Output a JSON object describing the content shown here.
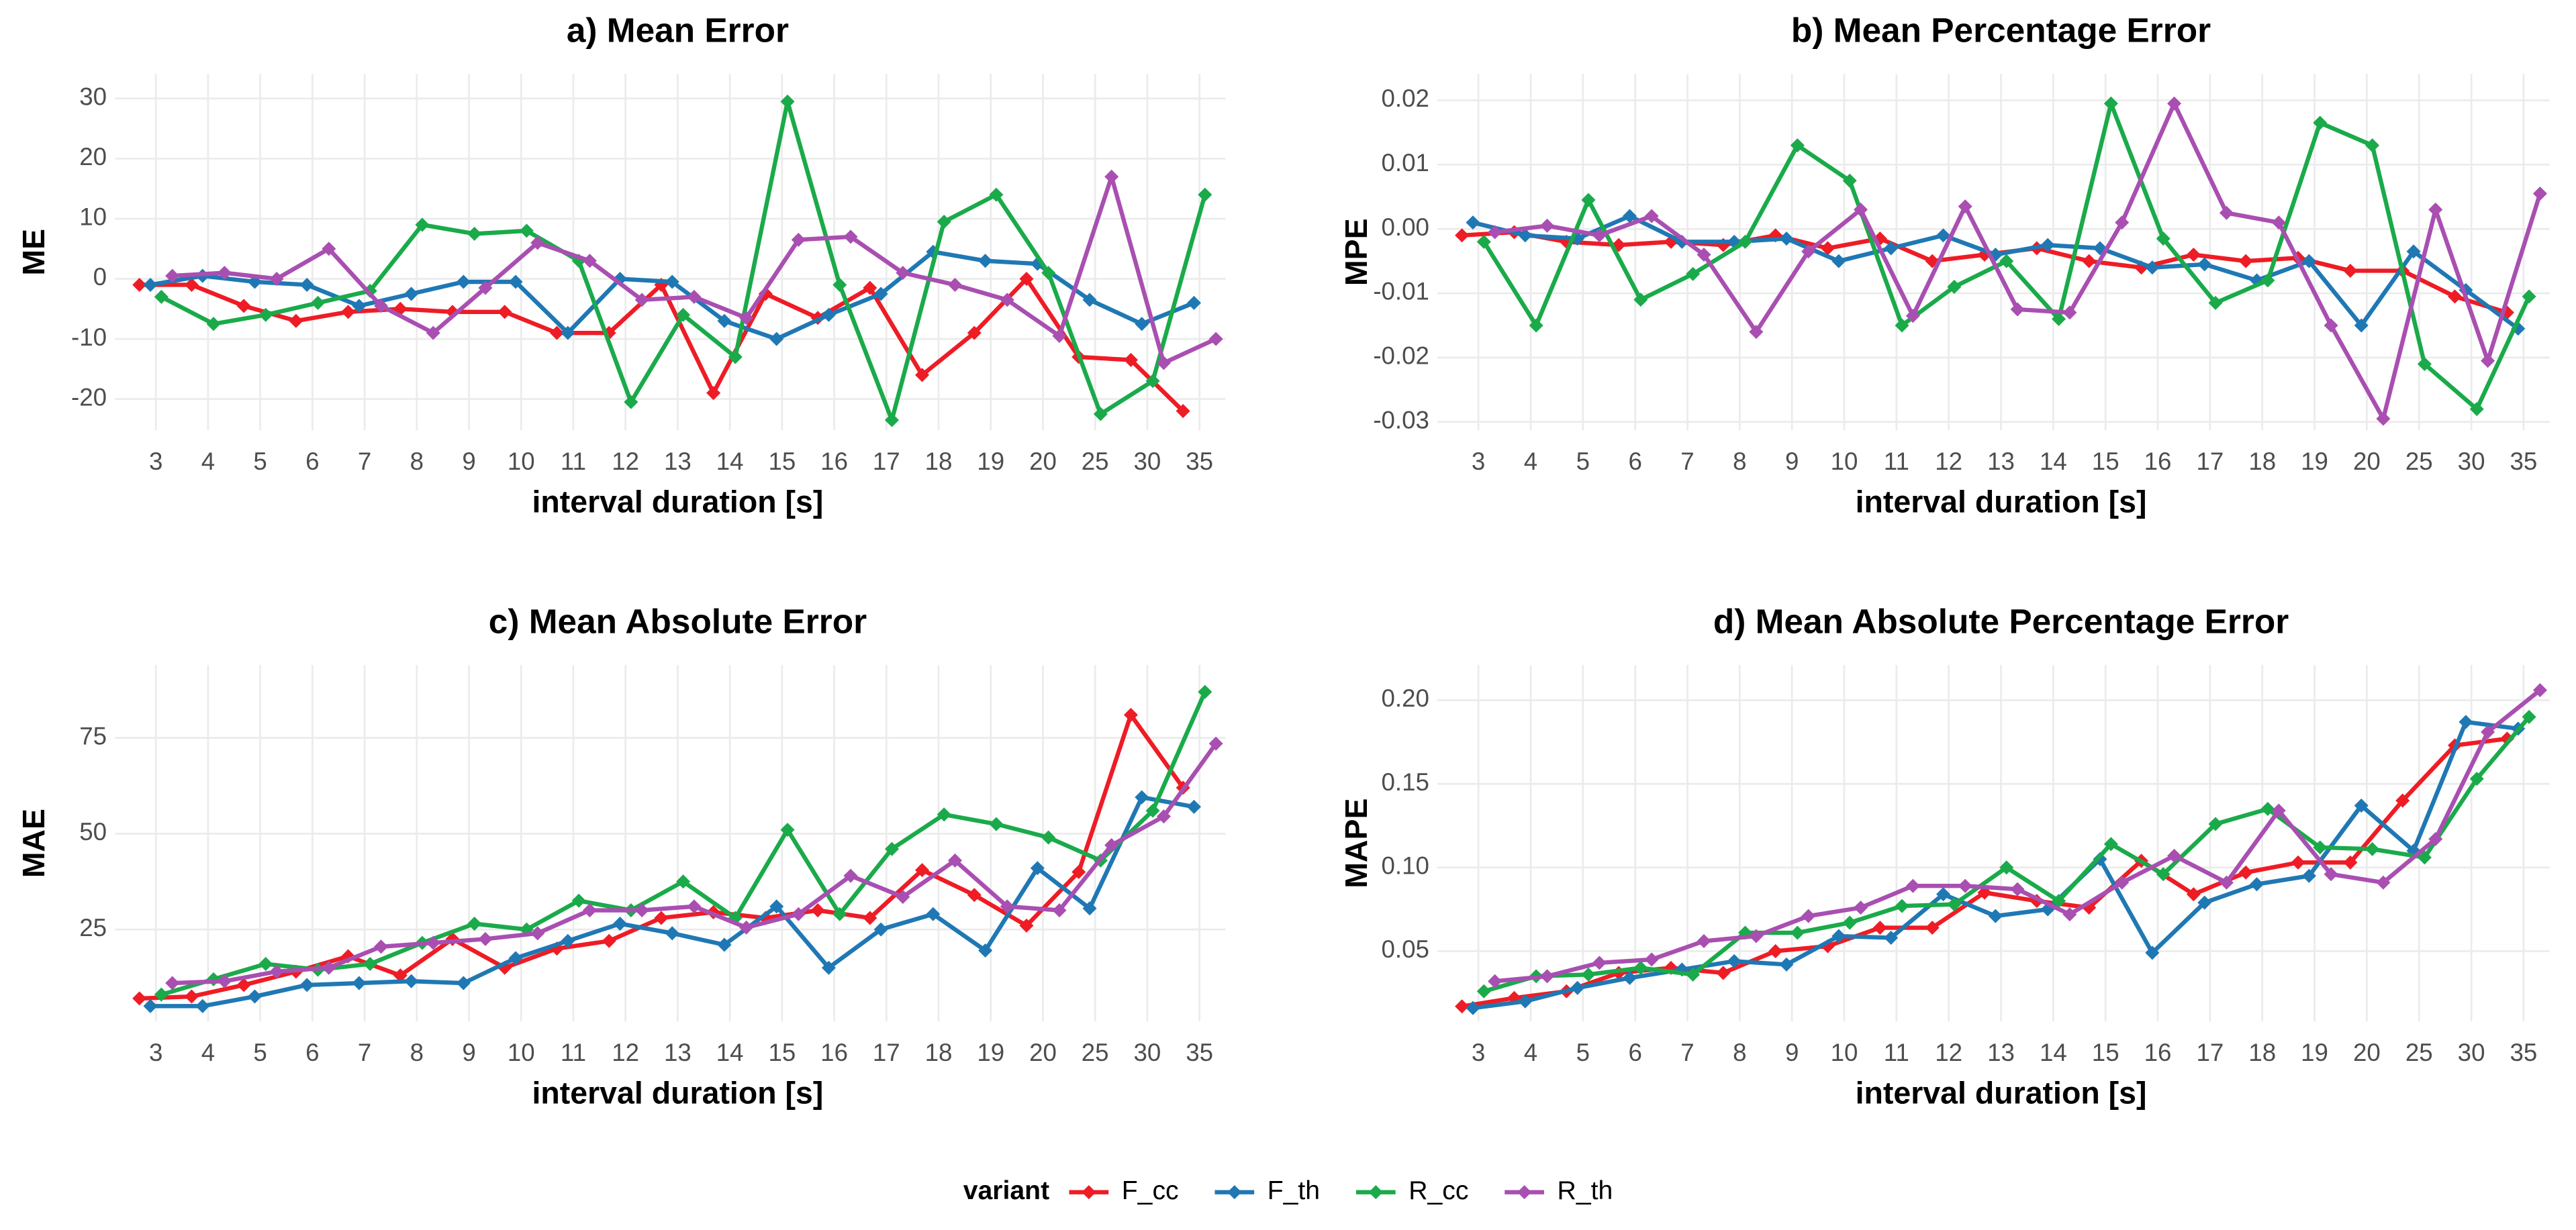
{
  "legend_title": "variant",
  "legend_position": "bottom",
  "chart_data": [
    {
      "type": "line",
      "title": "a) Mean Error",
      "xlabel": "interval duration [s]",
      "ylabel": "ME",
      "categories": [
        "3",
        "4",
        "5",
        "6",
        "7",
        "8",
        "9",
        "10",
        "11",
        "12",
        "13",
        "14",
        "15",
        "16",
        "17",
        "18",
        "19",
        "20",
        "25",
        "30",
        "35"
      ],
      "ylim": [
        -25.2,
        34.1
      ],
      "yticks": [
        -20,
        -10,
        0,
        10,
        20,
        30
      ],
      "grid": true,
      "dodge": true,
      "series": [
        {
          "name": "F_cc",
          "color": "#ee1c25",
          "values": [
            -1,
            -1,
            -4.5,
            -7,
            -5.5,
            -5,
            -5.5,
            -5.5,
            -9,
            -9,
            -1,
            -19,
            -2.5,
            -6.5,
            -1.5,
            -16,
            -9,
            0,
            -13,
            -13.5,
            -22
          ]
        },
        {
          "name": "F_th",
          "color": "#1f78b4",
          "values": [
            -1,
            0.5,
            -0.5,
            -1,
            -4.5,
            -2.5,
            -0.5,
            -0.5,
            -9,
            0,
            -0.5,
            -7,
            -10,
            -6,
            -2.5,
            4.5,
            3,
            2.5,
            -3.5,
            -7.5,
            -4
          ]
        },
        {
          "name": "R_cc",
          "color": "#1aaa4a",
          "values": [
            -3,
            -7.5,
            -6,
            -4,
            -2,
            9,
            7.5,
            8,
            3,
            -20.5,
            -6,
            -13,
            29.5,
            -1,
            -23.5,
            9.5,
            14,
            1,
            -22.5,
            -17,
            14
          ]
        },
        {
          "name": "R_th",
          "color": "#a94fb1",
          "values": [
            0.5,
            1,
            0,
            5,
            -4.5,
            -9,
            -1.5,
            6,
            3,
            -3.5,
            -3,
            -6.5,
            6.5,
            7,
            1,
            -1,
            -3.5,
            -9.5,
            17,
            -14,
            -10
          ]
        }
      ]
    },
    {
      "type": "line",
      "title": "b) Mean Percentage Error",
      "xlabel": "interval duration [s]",
      "ylabel": "MPE",
      "categories": [
        "3",
        "4",
        "5",
        "6",
        "7",
        "8",
        "9",
        "10",
        "11",
        "12",
        "13",
        "14",
        "15",
        "16",
        "17",
        "18",
        "19",
        "20",
        "25",
        "30",
        "35"
      ],
      "ylim": [
        -0.0313,
        0.0241
      ],
      "yticks": [
        -0.03,
        -0.02,
        -0.01,
        {
          "value": 0,
          "label": "0.00"
        },
        0.01,
        0.02
      ],
      "grid": true,
      "dodge": true,
      "series": [
        {
          "name": "F_cc",
          "color": "#ee1c25",
          "values": [
            -0.001,
            -0.0005,
            -0.002,
            -0.0025,
            -0.002,
            -0.0025,
            -0.001,
            -0.003,
            -0.0015,
            -0.005,
            -0.004,
            -0.003,
            -0.005,
            -0.006,
            -0.004,
            -0.005,
            -0.0045,
            -0.0065,
            -0.0065,
            -0.0105,
            -0.013
          ]
        },
        {
          "name": "F_th",
          "color": "#1f78b4",
          "values": [
            0.001,
            -0.001,
            -0.0015,
            0.002,
            -0.002,
            -0.002,
            -0.0015,
            -0.005,
            -0.003,
            -0.001,
            -0.004,
            -0.0025,
            -0.003,
            -0.006,
            -0.0055,
            -0.008,
            -0.005,
            -0.015,
            -0.0035,
            -0.0095,
            -0.0155
          ]
        },
        {
          "name": "R_cc",
          "color": "#1aaa4a",
          "values": [
            -0.002,
            -0.015,
            0.0045,
            -0.011,
            -0.007,
            -0.002,
            0.013,
            0.0075,
            -0.015,
            -0.009,
            -0.005,
            -0.014,
            0.0195,
            -0.0015,
            -0.0115,
            -0.008,
            0.0165,
            0.013,
            -0.021,
            -0.028,
            -0.0105
          ]
        },
        {
          "name": "R_th",
          "color": "#a94fb1",
          "values": [
            -0.0005,
            0.0005,
            -0.001,
            0.002,
            -0.004,
            -0.016,
            -0.0035,
            0.003,
            -0.0135,
            0.0035,
            -0.0125,
            -0.013,
            0.001,
            0.0195,
            0.0025,
            0.001,
            -0.015,
            -0.0295,
            0.003,
            -0.0205,
            0.0055
          ]
        }
      ]
    },
    {
      "type": "line",
      "title": "c) Mean Absolute Error",
      "xlabel": "interval duration [s]",
      "ylabel": "MAE",
      "categories": [
        "3",
        "4",
        "5",
        "6",
        "7",
        "8",
        "9",
        "10",
        "11",
        "12",
        "13",
        "14",
        "15",
        "16",
        "17",
        "18",
        "19",
        "20",
        "25",
        "30",
        "35"
      ],
      "ylim": [
        1,
        94
      ],
      "yticks": [
        25,
        50,
        75
      ],
      "grid": true,
      "dodge": true,
      "series": [
        {
          "name": "F_cc",
          "color": "#ee1c25",
          "values": [
            7,
            7.5,
            10.5,
            14,
            18,
            13,
            22.5,
            15,
            20,
            22,
            28,
            29.5,
            28,
            30,
            28,
            40.5,
            34,
            26,
            40,
            81,
            62
          ]
        },
        {
          "name": "F_th",
          "color": "#1f78b4",
          "values": [
            5,
            5,
            7.5,
            10.5,
            11,
            11.5,
            11,
            17.5,
            22,
            26.5,
            24,
            21,
            31,
            15,
            25,
            29,
            19.5,
            41,
            30.5,
            59.5,
            57
          ]
        },
        {
          "name": "R_cc",
          "color": "#1aaa4a",
          "values": [
            8,
            12,
            16,
            14.5,
            16,
            21.5,
            26.5,
            25,
            32.5,
            30,
            37.5,
            28,
            51,
            29,
            46,
            55,
            52.5,
            49,
            43,
            56,
            87
          ]
        },
        {
          "name": "R_th",
          "color": "#a94fb1",
          "values": [
            11,
            11.5,
            14,
            15,
            20.5,
            21.5,
            22.5,
            24,
            30,
            30,
            31,
            25.5,
            29,
            39,
            33.5,
            43,
            31,
            30,
            47,
            54.5,
            73.5
          ]
        }
      ]
    },
    {
      "type": "line",
      "title": "d) Mean Absolute Percentage Error",
      "xlabel": "interval duration [s]",
      "ylabel": "MAPE",
      "categories": [
        "3",
        "4",
        "5",
        "6",
        "7",
        "8",
        "9",
        "10",
        "11",
        "12",
        "13",
        "14",
        "15",
        "16",
        "17",
        "18",
        "19",
        "20",
        "25",
        "30",
        "35"
      ],
      "ylim": [
        0.008,
        0.221
      ],
      "yticks": [
        0.05,
        {
          "value": 0.1,
          "label": "0.10"
        },
        0.15,
        {
          "value": 0.2,
          "label": "0.20"
        }
      ],
      "grid": true,
      "dodge": true,
      "series": [
        {
          "name": "F_cc",
          "color": "#ee1c25",
          "values": [
            0.017,
            0.022,
            0.026,
            0.037,
            0.04,
            0.037,
            0.05,
            0.053,
            0.064,
            0.064,
            0.085,
            0.08,
            0.076,
            0.104,
            0.084,
            0.097,
            0.103,
            0.103,
            0.14,
            0.173,
            0.177
          ]
        },
        {
          "name": "F_th",
          "color": "#1f78b4",
          "values": [
            0.016,
            0.02,
            0.028,
            0.034,
            0.039,
            0.044,
            0.042,
            0.059,
            0.058,
            0.084,
            0.071,
            0.075,
            0.105,
            0.049,
            0.079,
            0.09,
            0.095,
            0.137,
            0.11,
            0.187,
            0.183
          ]
        },
        {
          "name": "R_cc",
          "color": "#1aaa4a",
          "values": [
            0.026,
            0.035,
            0.036,
            0.04,
            0.036,
            0.061,
            0.061,
            0.067,
            0.077,
            0.078,
            0.1,
            0.08,
            0.114,
            0.096,
            0.126,
            0.135,
            0.112,
            0.111,
            0.106,
            0.153,
            0.19
          ]
        },
        {
          "name": "R_th",
          "color": "#a94fb1",
          "values": [
            0.032,
            0.035,
            0.043,
            0.045,
            0.056,
            0.059,
            0.071,
            0.076,
            0.089,
            0.089,
            0.087,
            0.072,
            0.091,
            0.107,
            0.091,
            0.134,
            0.096,
            0.091,
            0.117,
            0.181,
            0.206
          ]
        }
      ]
    }
  ]
}
